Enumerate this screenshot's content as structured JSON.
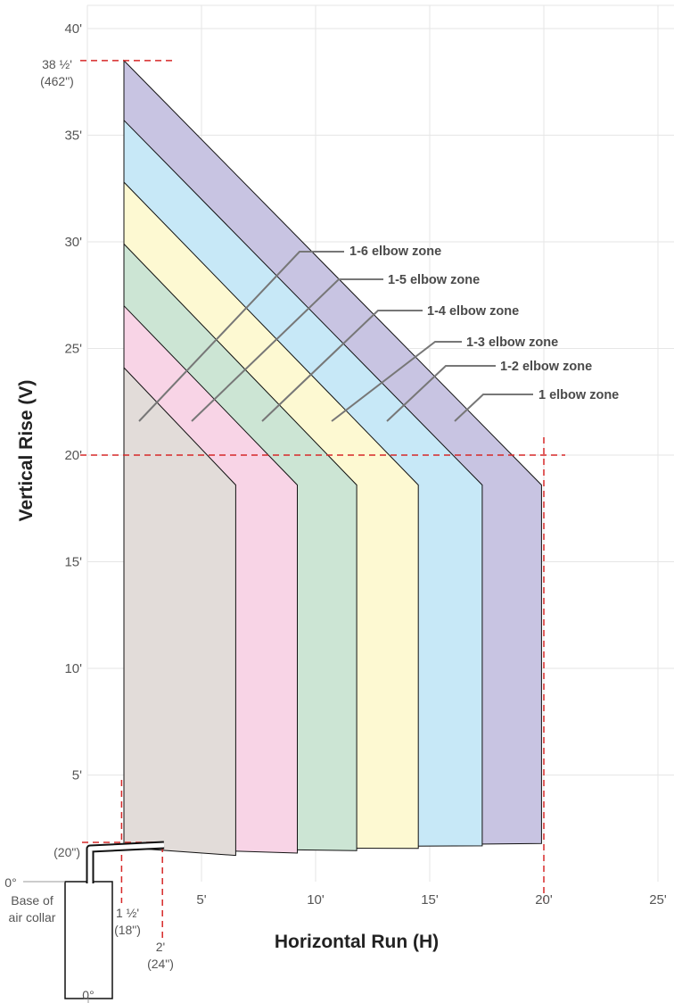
{
  "chart_data": {
    "type": "area",
    "xlabel": "Horizontal Run (H)",
    "ylabel": "Vertical Rise (V)",
    "xlim": [
      0,
      25
    ],
    "ylim": [
      0,
      40
    ],
    "x_ticks": [
      {
        "value": 5,
        "label": "5'"
      },
      {
        "value": 10,
        "label": "10'"
      },
      {
        "value": 15,
        "label": "15'"
      },
      {
        "value": 20,
        "label": "20'"
      },
      {
        "value": 25,
        "label": "25'"
      }
    ],
    "y_ticks": [
      {
        "value": 5,
        "label": "5'"
      },
      {
        "value": 10,
        "label": "10'"
      },
      {
        "value": 15,
        "label": "15'"
      },
      {
        "value": 20,
        "label": "20'"
      },
      {
        "value": 25,
        "label": "25'"
      },
      {
        "value": 30,
        "label": "30'"
      },
      {
        "value": 35,
        "label": "35'"
      },
      {
        "value": 40,
        "label": "40'"
      }
    ],
    "grid": true,
    "zones": [
      {
        "name": "1 elbow zone",
        "color": "#c8c4e2",
        "top_left": 38.5,
        "right_x": 19.9,
        "knee_y": 18.6,
        "bottom_y": 1.7
      },
      {
        "name": "1-2 elbow zone",
        "color": "#c7e8f7",
        "top_left": 35.7,
        "right_x": 17.3,
        "knee_y": 18.6,
        "bottom_y": 1.65
      },
      {
        "name": "1-3 elbow zone",
        "color": "#fdf9d2",
        "top_left": 32.8,
        "right_x": 14.5,
        "knee_y": 18.6,
        "bottom_y": 1.6
      },
      {
        "name": "1-4 elbow zone",
        "color": "#cce5d4",
        "top_left": 29.9,
        "right_x": 11.8,
        "knee_y": 18.6,
        "bottom_y": 1.55
      },
      {
        "name": "1-5 elbow zone",
        "color": "#f8d4e6",
        "top_left": 27.0,
        "right_x": 9.2,
        "knee_y": 18.6,
        "bottom_y": 1.5
      },
      {
        "name": "1-6 elbow zone",
        "color": "#e2dcd9",
        "top_left": 24.1,
        "right_x": 6.5,
        "knee_y": 18.6,
        "bottom_y": 1.45
      }
    ],
    "x_start": 1.6,
    "references": {
      "max_rise": {
        "label_line1": "38 ½'",
        "label_line2": "(462\")",
        "value": 38.5
      },
      "rise_20": {
        "value": 20
      },
      "run_20": {
        "value": 20
      },
      "run_1_5": {
        "label_line1": "1 ½'",
        "label_line2": "(18\")",
        "value": 1.5
      },
      "run_2": {
        "label_line1": "2'",
        "label_line2": "(24\")",
        "value": 2
      },
      "rise_20in": {
        "label": "(20\")"
      }
    },
    "annotations": {
      "base_zero": "0°",
      "base_label_line1": "Base of",
      "base_label_line2": "air collar",
      "origin_zero": "0°"
    }
  }
}
